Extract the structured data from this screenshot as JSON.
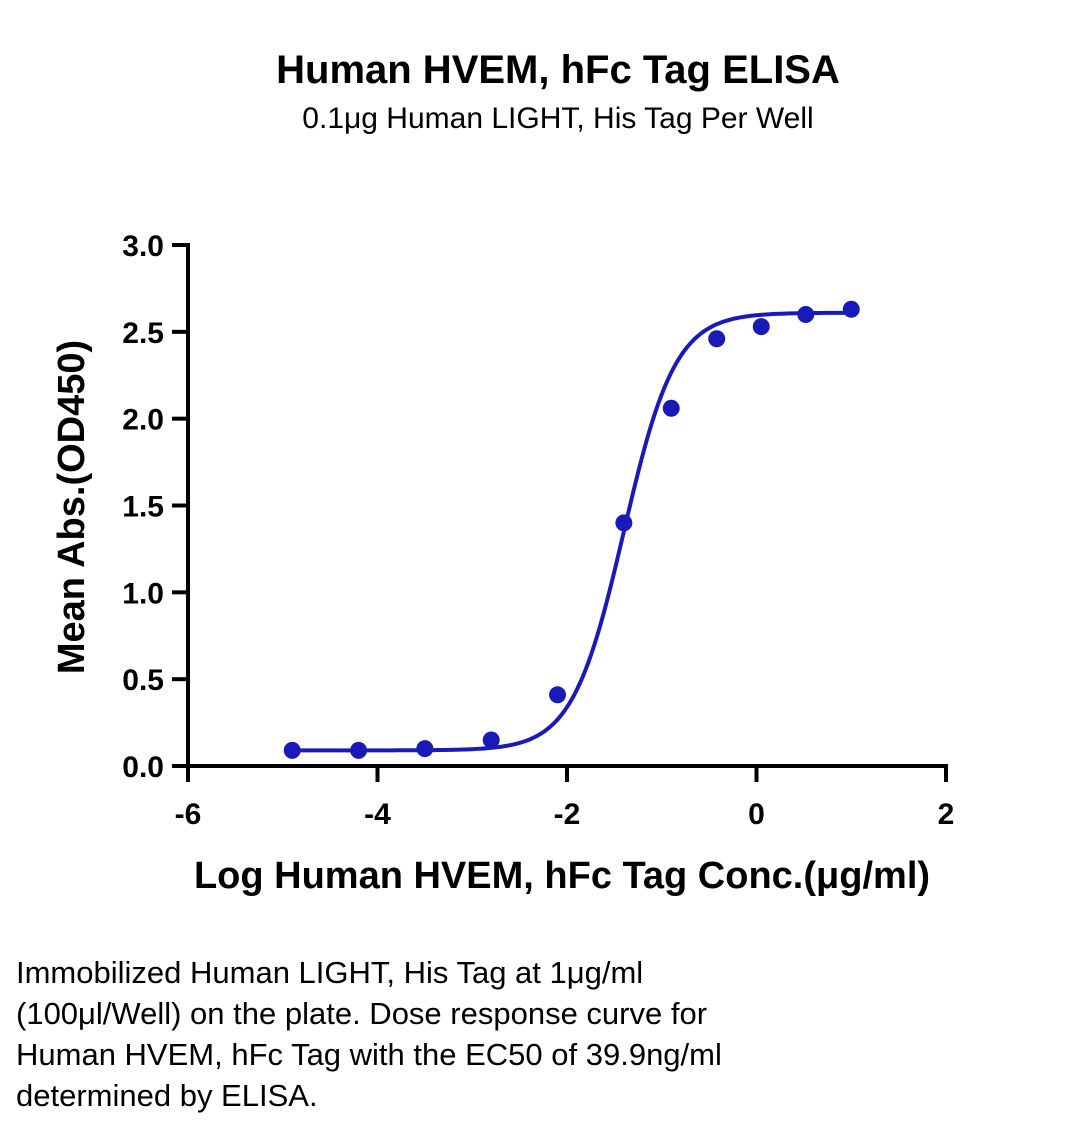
{
  "chart_data": {
    "type": "scatter",
    "title": "Human HVEM, hFc Tag ELISA",
    "subtitle": "0.1μg Human LIGHT, His Tag Per Well",
    "xlabel": "Log Human HVEM, hFc Tag Conc.(μg/ml)",
    "ylabel": "Mean Abs.(OD450)",
    "xlim": [
      -6,
      2
    ],
    "ylim": [
      0,
      3
    ],
    "x_ticks": [
      -6,
      -4,
      -2,
      0,
      2
    ],
    "x_tick_labels": [
      "-6",
      "-4",
      "-2",
      "0",
      "2"
    ],
    "y_ticks": [
      0,
      0.5,
      1,
      1.5,
      2,
      2.5,
      3
    ],
    "y_tick_labels": [
      "0.0",
      "0.5",
      "1.0",
      "1.5",
      "2.0",
      "2.5",
      "3.0"
    ],
    "series": [
      {
        "color": "#1a1ab8",
        "x": [
          -4.9,
          -4.2,
          -3.5,
          -2.8,
          -2.1,
          -1.4,
          -0.9,
          -0.42,
          0.05,
          0.52,
          1.0
        ],
        "y": [
          0.09,
          0.09,
          0.1,
          0.15,
          0.41,
          1.4,
          2.06,
          2.46,
          2.53,
          2.6,
          2.63
        ],
        "fit": {
          "model": "4PL",
          "bottom": 0.09,
          "top": 2.61,
          "log_ec50": -1.4,
          "hill": 1.6
        }
      }
    ],
    "grid": false,
    "legend": "none"
  },
  "caption": {
    "lines": [
      "Immobilized Human LIGHT, His Tag at 1μg/ml",
      "(100μl/Well) on the plate. Dose response curve for",
      "Human HVEM, hFc Tag with the EC50 of 39.9ng/ml",
      "determined by ELISA."
    ]
  }
}
